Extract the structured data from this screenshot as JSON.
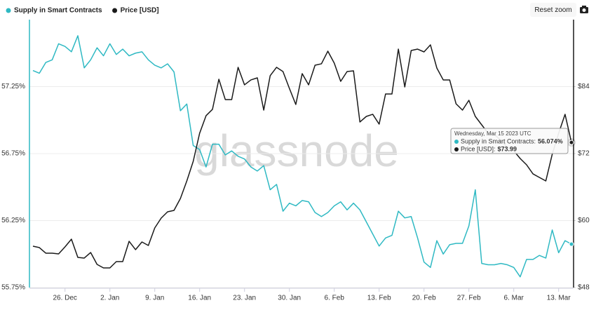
{
  "chart_data": {
    "type": "line",
    "watermark": "glassnode",
    "categories": [
      null,
      null,
      null,
      null,
      null,
      "26. Dec",
      null,
      null,
      null,
      null,
      null,
      null,
      "2. Jan",
      null,
      null,
      null,
      null,
      null,
      null,
      "9. Jan",
      null,
      null,
      null,
      null,
      null,
      null,
      "16. Jan",
      null,
      null,
      null,
      null,
      null,
      null,
      "23. Jan",
      null,
      null,
      null,
      null,
      null,
      null,
      "30. Jan",
      null,
      null,
      null,
      null,
      null,
      null,
      "6. Feb",
      null,
      null,
      null,
      null,
      null,
      null,
      "13. Feb",
      null,
      null,
      null,
      null,
      null,
      null,
      "20. Feb",
      null,
      null,
      null,
      null,
      null,
      null,
      "27. Feb",
      null,
      null,
      null,
      null,
      null,
      null,
      "6. Mar",
      null,
      null,
      null,
      null,
      null,
      null,
      "13. Mar",
      null,
      null
    ],
    "series": [
      {
        "name": "Supply in Smart Contracts",
        "color": "#2fb9c3",
        "values": [
          57.37,
          57.35,
          57.43,
          57.45,
          57.57,
          57.55,
          57.51,
          57.63,
          57.39,
          57.45,
          57.54,
          57.48,
          57.57,
          57.49,
          57.53,
          57.48,
          57.5,
          57.51,
          57.45,
          57.41,
          57.39,
          57.42,
          57.36,
          57.07,
          57.12,
          56.81,
          56.78,
          56.65,
          56.82,
          56.82,
          56.74,
          56.77,
          56.73,
          56.71,
          56.65,
          56.62,
          56.66,
          56.48,
          56.52,
          56.32,
          56.38,
          56.36,
          56.4,
          56.39,
          56.31,
          56.28,
          56.31,
          56.36,
          56.39,
          56.33,
          56.38,
          56.33,
          56.24,
          56.15,
          56.06,
          56.12,
          56.14,
          56.32,
          56.27,
          56.28,
          56.12,
          55.94,
          55.9,
          56.1,
          56.0,
          56.07,
          56.08,
          56.08,
          56.21,
          56.48,
          55.93,
          55.92,
          55.92,
          55.93,
          55.92,
          55.9,
          55.83,
          55.96,
          55.96,
          55.99,
          55.97,
          56.18,
          56.01,
          56.1,
          56.074
        ]
      },
      {
        "name": "Price [USD]",
        "color": "#1a1a1a",
        "axis": "y2",
        "values": [
          55.41,
          55.16,
          54.16,
          54.16,
          54.03,
          55.29,
          56.67,
          53.4,
          53.28,
          54.28,
          52.15,
          51.52,
          51.52,
          52.65,
          52.65,
          56.29,
          54.79,
          56.17,
          55.54,
          58.68,
          60.44,
          61.57,
          61.82,
          63.96,
          67.1,
          70.62,
          75.65,
          78.79,
          79.92,
          85.32,
          81.68,
          81.68,
          87.46,
          84.32,
          85.2,
          85.57,
          79.79,
          85.95,
          87.46,
          86.7,
          83.69,
          80.8,
          86.33,
          84.32,
          87.83,
          88.09,
          90.35,
          88.21,
          84.94,
          86.7,
          86.83,
          77.66,
          78.66,
          79.04,
          77.28,
          82.68,
          82.68,
          90.72,
          83.94,
          90.47,
          90.72,
          90.22,
          91.48,
          87.33,
          85.2,
          85.2,
          80.92,
          79.79,
          81.55,
          78.66,
          77.15,
          75.65,
          75.39,
          74.39,
          73.13,
          72.5,
          71.12,
          69.99,
          68.36,
          67.73,
          67.1,
          71.88,
          75.65,
          79.04,
          73.99
        ]
      }
    ],
    "ylim": [
      55.75,
      57.75
    ],
    "yticks": [
      {
        "value": 55.75,
        "label": "55.75%"
      },
      {
        "value": 56.25,
        "label": "56.25%"
      },
      {
        "value": 56.75,
        "label": "56.75%"
      },
      {
        "value": 57.25,
        "label": "57.25%"
      }
    ],
    "y2lim": [
      48,
      96
    ],
    "y2ticks": [
      {
        "value": 48,
        "label": "$48"
      },
      {
        "value": 60,
        "label": "$60"
      },
      {
        "value": 72,
        "label": "$72"
      },
      {
        "value": 84,
        "label": "$84"
      }
    ],
    "grid": true,
    "legend": "top-left",
    "tooltip": {
      "title": "Wednesday, Mar 15 2023 UTC",
      "rows": [
        {
          "label": "Supply in Smart Contracts:",
          "value": "56.074%"
        },
        {
          "label": "Price [USD]:",
          "value": "$73.99"
        }
      ]
    },
    "reset_button": "Reset zoom"
  }
}
